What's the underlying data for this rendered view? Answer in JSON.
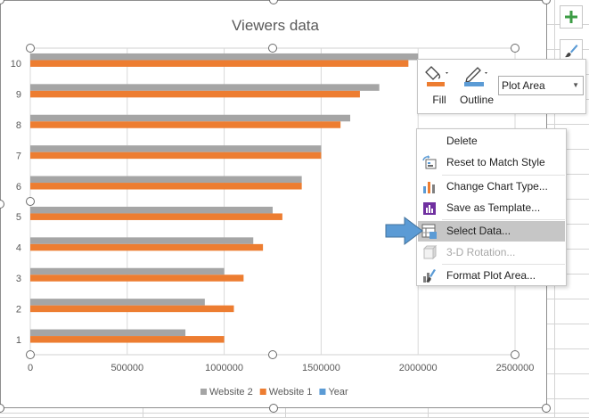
{
  "chart_data": {
    "type": "bar",
    "orientation": "horizontal",
    "title": "Viewers data",
    "categories": [
      "1",
      "2",
      "3",
      "4",
      "5",
      "6",
      "7",
      "8",
      "9",
      "10"
    ],
    "series": [
      {
        "name": "Website 2",
        "color": "#a5a5a5",
        "values": [
          800000,
          900000,
          1000000,
          1150000,
          1250000,
          1400000,
          1500000,
          1650000,
          1800000,
          2000000
        ]
      },
      {
        "name": "Website 1",
        "color": "#ed7d31",
        "values": [
          1000000,
          1050000,
          1100000,
          1200000,
          1300000,
          1400000,
          1500000,
          1600000,
          1700000,
          1950000
        ]
      },
      {
        "name": "Year",
        "color": "#5b9bd5",
        "values": [
          1,
          2,
          3,
          4,
          5,
          6,
          7,
          8,
          9,
          10
        ]
      }
    ],
    "xlim": [
      0,
      2500000
    ],
    "xticks": [
      "0",
      "500000",
      "1000000",
      "1500000",
      "2000000",
      "2500000"
    ],
    "legend_position": "bottom",
    "grid": "vertical"
  },
  "chart_buttons": {
    "elements_icon": "plus-icon",
    "styles_icon": "brush-icon"
  },
  "mini_toolbar": {
    "fill_label": "Fill",
    "outline_label": "Outline",
    "chart_element": "Plot Area",
    "fill_color": "#ed7d31",
    "outline_color": "#5b9bd5"
  },
  "context_menu": {
    "items": [
      {
        "label": "Delete",
        "icon": "none",
        "enabled": true
      },
      {
        "label": "Reset to Match Style",
        "icon": "reset-style-icon",
        "enabled": true
      },
      {
        "label": "Change Chart Type...",
        "icon": "chart-type-icon",
        "enabled": true
      },
      {
        "label": "Save as Template...",
        "icon": "template-icon",
        "enabled": true
      },
      {
        "label": "Select Data...",
        "icon": "select-data-icon",
        "enabled": true,
        "highlighted": true
      },
      {
        "label": "3-D Rotation...",
        "icon": "rotation-3d-icon",
        "enabled": false
      },
      {
        "label": "Format Plot Area...",
        "icon": "format-plot-area-icon",
        "enabled": true
      }
    ]
  },
  "accent_color": "#5b9bd5"
}
